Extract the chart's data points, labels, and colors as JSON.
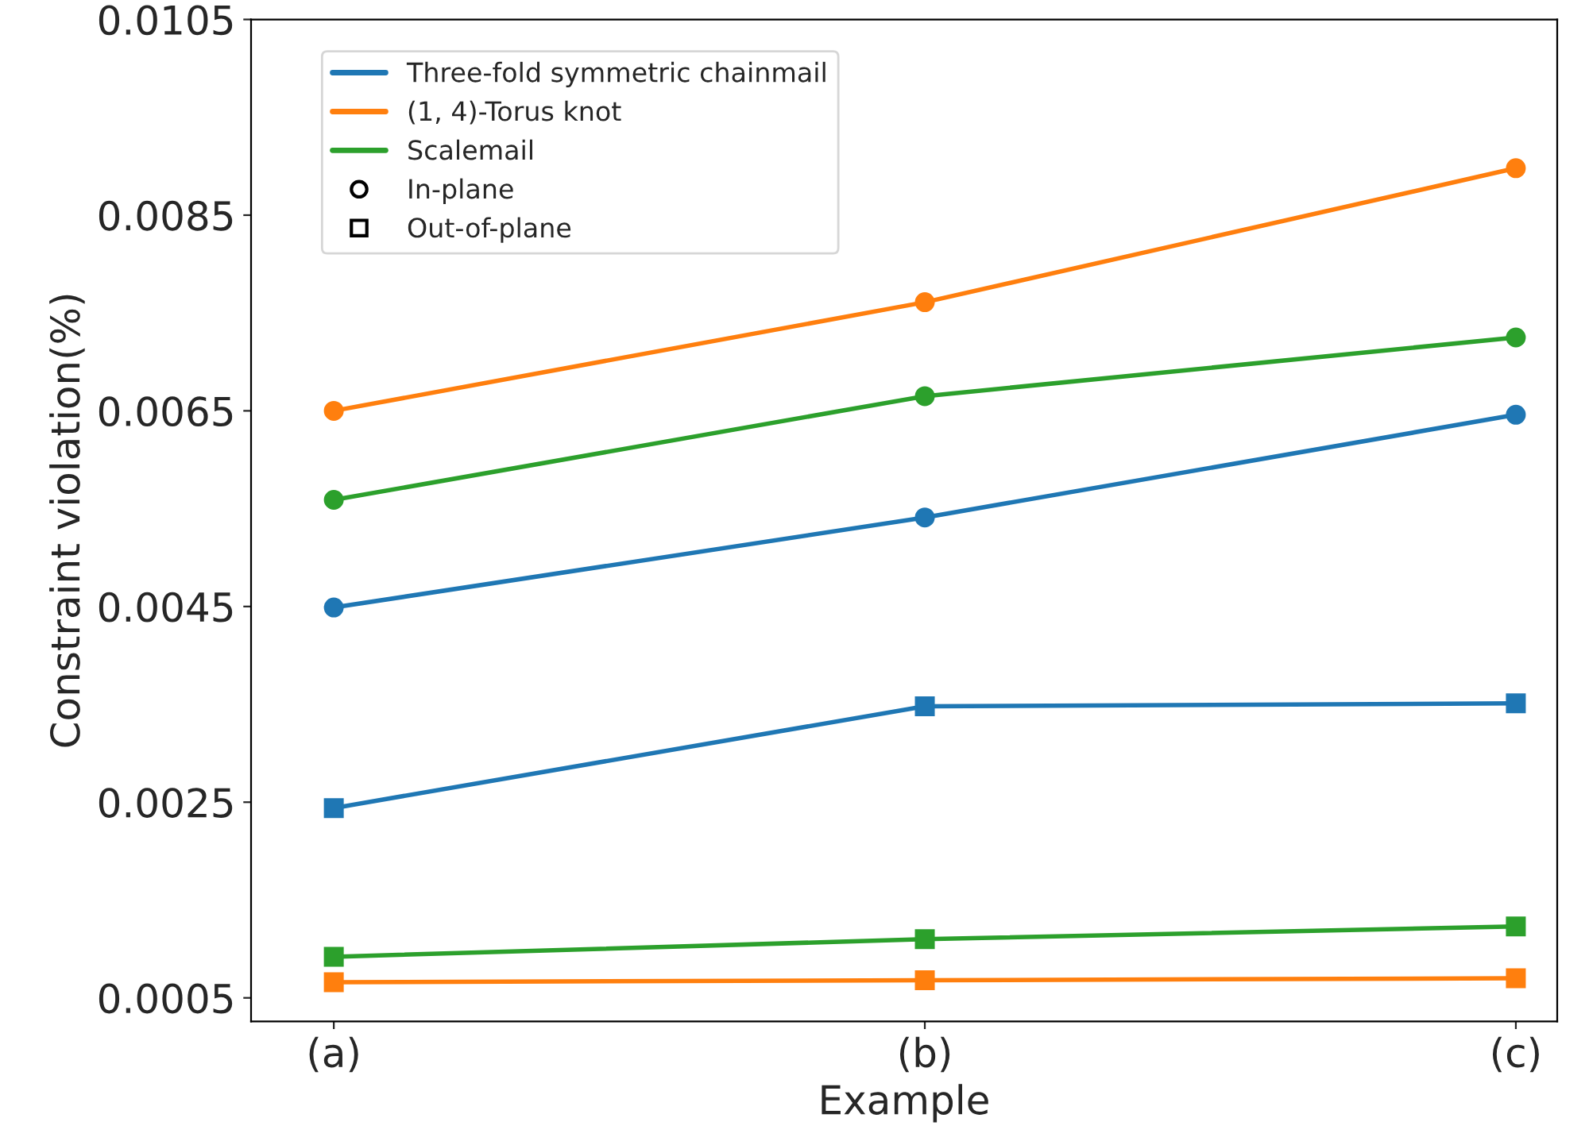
{
  "chart_data": {
    "type": "line",
    "xlabel": "Example",
    "ylabel": "Constraint violation(%)",
    "categories": [
      "(a)",
      "(b)",
      "(c)"
    ],
    "ylim": [
      0.00026,
      0.0105
    ],
    "yticks": [
      {
        "value": 0.0005,
        "label": "0.0005"
      },
      {
        "value": 0.0025,
        "label": "0.0025"
      },
      {
        "value": 0.0045,
        "label": "0.0045"
      },
      {
        "value": 0.0065,
        "label": "0.0065"
      },
      {
        "value": 0.0085,
        "label": "0.0085"
      },
      {
        "value": 0.0105,
        "label": "0.0105"
      }
    ],
    "grid": false,
    "legend": "top left",
    "series": [
      {
        "name": "Three-fold symmetric chainmail",
        "color": "#1f77b4",
        "marker": "circle",
        "values": [
          0.00449,
          0.00541,
          0.00646
        ]
      },
      {
        "name": "(1, 4)-Torus knot",
        "color": "#ff7f0e",
        "marker": "circle",
        "values": [
          0.0065,
          0.00761,
          0.00898
        ]
      },
      {
        "name": "Scalemail",
        "color": "#2ca02c",
        "marker": "circle",
        "values": [
          0.00559,
          0.00665,
          0.00725
        ]
      },
      {
        "color": "#1f77b4",
        "marker": "square",
        "values": [
          0.00244,
          0.00348,
          0.00351
        ]
      },
      {
        "color": "#ff7f0e",
        "marker": "square",
        "values": [
          0.00066,
          0.00068,
          0.0007
        ]
      },
      {
        "color": "#2ca02c",
        "marker": "square",
        "values": [
          0.00092,
          0.0011,
          0.00123
        ]
      },
      {
        "type": "scatter",
        "name": "In-plane",
        "color": "#000000",
        "marker": "circle",
        "values": [
          null,
          null,
          null
        ]
      },
      {
        "type": "scatter",
        "name": "Out-of-plane",
        "color": "#000000",
        "marker": "square",
        "values": [
          null,
          null,
          null
        ]
      }
    ]
  }
}
